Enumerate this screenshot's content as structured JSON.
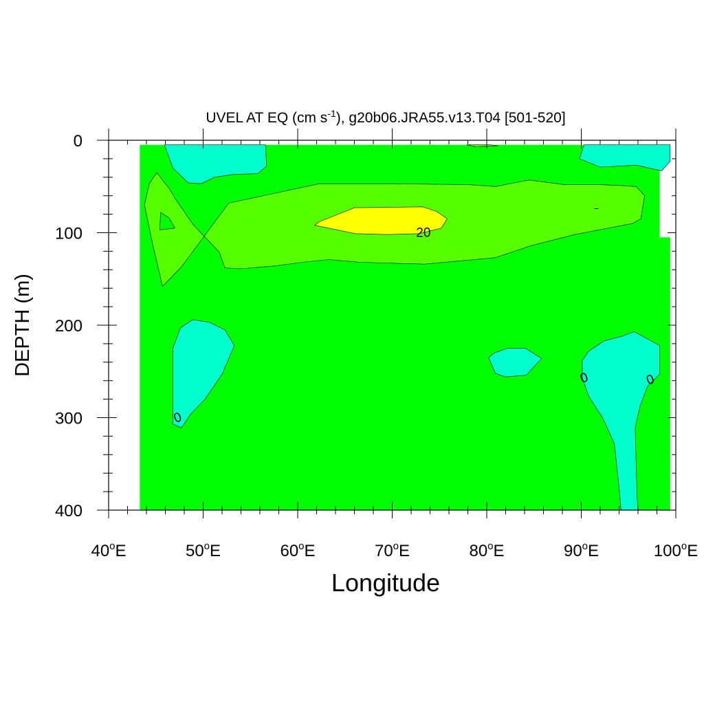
{
  "chart_data": {
    "type": "contour",
    "title": {
      "prefix": "UVEL AT EQ (cm s",
      "exponent": "-1",
      "suffix": "), g20b06.JRA55.v13.T04 [501-520]"
    },
    "xlabel": "Longitude",
    "ylabel": "DEPTH (m)",
    "xlim": [
      40,
      100
    ],
    "ylim": [
      0,
      400
    ],
    "y_inverted": true,
    "x_ticks": [
      {
        "value": 40,
        "num": "40",
        "deg": "o",
        "hemi": "E"
      },
      {
        "value": 50,
        "num": "50",
        "deg": "o",
        "hemi": "E"
      },
      {
        "value": 60,
        "num": "60",
        "deg": "o",
        "hemi": "E"
      },
      {
        "value": 70,
        "num": "70",
        "deg": "o",
        "hemi": "E"
      },
      {
        "value": 80,
        "num": "80",
        "deg": "o",
        "hemi": "E"
      },
      {
        "value": 90,
        "num": "90",
        "deg": "o",
        "hemi": "E"
      },
      {
        "value": 100,
        "num": "100",
        "deg": "o",
        "hemi": "E"
      }
    ],
    "y_ticks": [
      {
        "value": 0,
        "label": "0"
      },
      {
        "value": 100,
        "label": "100"
      },
      {
        "value": 200,
        "label": "200"
      },
      {
        "value": 300,
        "label": "300"
      },
      {
        "value": 400,
        "label": "400"
      }
    ],
    "fill_colors": {
      "negative": "#00ffcc",
      "low_positive": "#00ff00",
      "mid_positive": "#55ff00",
      "high_positive": "#ffff00"
    },
    "data_domain": {
      "lon": [
        43.3,
        43.3,
        99.4,
        99.4,
        98.3,
        98.3
      ],
      "depth": [
        5,
        400,
        400,
        105,
        105,
        5
      ]
    },
    "regions": [
      {
        "name": "negative-north-west",
        "level": "negative",
        "lon": [
          45.9,
          46.8,
          48.4,
          49.8,
          51.2,
          53.2,
          55.8,
          56.7,
          56.6
        ],
        "depth": [
          5,
          30,
          46,
          47,
          40,
          37,
          36,
          28,
          5
        ]
      },
      {
        "name": "negative-north-east",
        "level": "negative",
        "lon": [
          90.3,
          89.8,
          92.0,
          95.8,
          98.5,
          99.4,
          99.4
        ],
        "depth": [
          5,
          20,
          29,
          27,
          33,
          23,
          5
        ]
      },
      {
        "name": "core-shell",
        "level": "mid_positive",
        "lon": [
          45.1,
          44.3,
          43.8,
          44.6,
          45.7,
          47.7,
          52.7,
          62.3,
          70.1,
          78.1,
          80.9,
          84.5,
          88.2,
          91.9,
          94.3,
          95.8,
          96.7,
          96.3,
          95.4,
          89.3,
          84.7,
          80.9,
          73.4,
          66.6,
          63.3,
          60.5,
          57.5,
          53.9,
          52.3,
          51.7,
          49.0,
          47.1,
          46.4
        ],
        "depth": [
          35,
          47,
          70,
          110,
          158,
          137,
          68,
          47,
          47,
          48,
          50,
          43,
          48,
          48,
          49,
          50,
          60,
          85,
          90,
          102,
          114,
          127,
          134,
          132,
          129,
          132,
          136,
          139,
          138,
          121,
          92,
          64,
          52
        ]
      },
      {
        "name": "core-shell-inner-gap",
        "level": "low_positive",
        "lon": [
          45.5,
          45.4,
          47.0,
          46.4
        ],
        "depth": [
          78,
          97,
          95,
          84
        ]
      },
      {
        "name": "core-maximum",
        "level": "high_positive",
        "lon": [
          61.8,
          62.3,
          66.0,
          73.2,
          74.7,
          75.8,
          75.2,
          72.9,
          69.5,
          66.1
        ],
        "depth": [
          92,
          88,
          73,
          72,
          77,
          85,
          95,
          101,
          102,
          101
        ]
      },
      {
        "name": "surface-positive",
        "level": "mid_positive",
        "lon": [
          77.9,
          80.4,
          81.2,
          78.8
        ],
        "depth": [
          5,
          5,
          6,
          7
        ]
      },
      {
        "name": "negative-south-west",
        "level": "negative",
        "lon": [
          46.8,
          47.6,
          48.9,
          50.7,
          52.3,
          53.3,
          52.0,
          50.2,
          48.7,
          47.7,
          46.8
        ],
        "depth": [
          225,
          203,
          194,
          197,
          205,
          222,
          253,
          280,
          296,
          311,
          307
        ]
      },
      {
        "name": "negative-south-central",
        "level": "negative",
        "lon": [
          80.2,
          80.8,
          82.2,
          84.1,
          85.8,
          84.2,
          82.0,
          80.9
        ],
        "depth": [
          235,
          230,
          225,
          225,
          236,
          254,
          256,
          252
        ]
      },
      {
        "name": "negative-south-east",
        "level": "negative",
        "lon": [
          90.1,
          90.8,
          92.4,
          94.3,
          95.6,
          98.3,
          98.3,
          97.0,
          96.2,
          95.7,
          95.9,
          96.0,
          94.2,
          94.0,
          93.5,
          92.3,
          90.8,
          90.1
        ],
        "depth": [
          238,
          228,
          217,
          212,
          207,
          222,
          253,
          266,
          288,
          311,
          385,
          400,
          400,
          376,
          328,
          301,
          277,
          257
        ]
      }
    ],
    "contour_lines": [
      {
        "name": "zero-contour-west",
        "lon": 47.3,
        "depth": 300
      },
      {
        "name": "zero-contour-east-a",
        "lon": 90.3,
        "depth": 257
      },
      {
        "name": "zero-contour-east-b",
        "lon": 97.3,
        "depth": 259
      },
      {
        "name": "small-contour-tick",
        "lon": 91.6,
        "depth": 74
      }
    ],
    "contour_labels": [
      {
        "text": "20",
        "lon": 73.3,
        "depth": 100
      },
      {
        "text": "0",
        "lon": 47.3,
        "depth": 300
      },
      {
        "text": "0",
        "lon": 90.3,
        "depth": 257
      },
      {
        "text": "0",
        "lon": 97.3,
        "depth": 259
      }
    ]
  }
}
